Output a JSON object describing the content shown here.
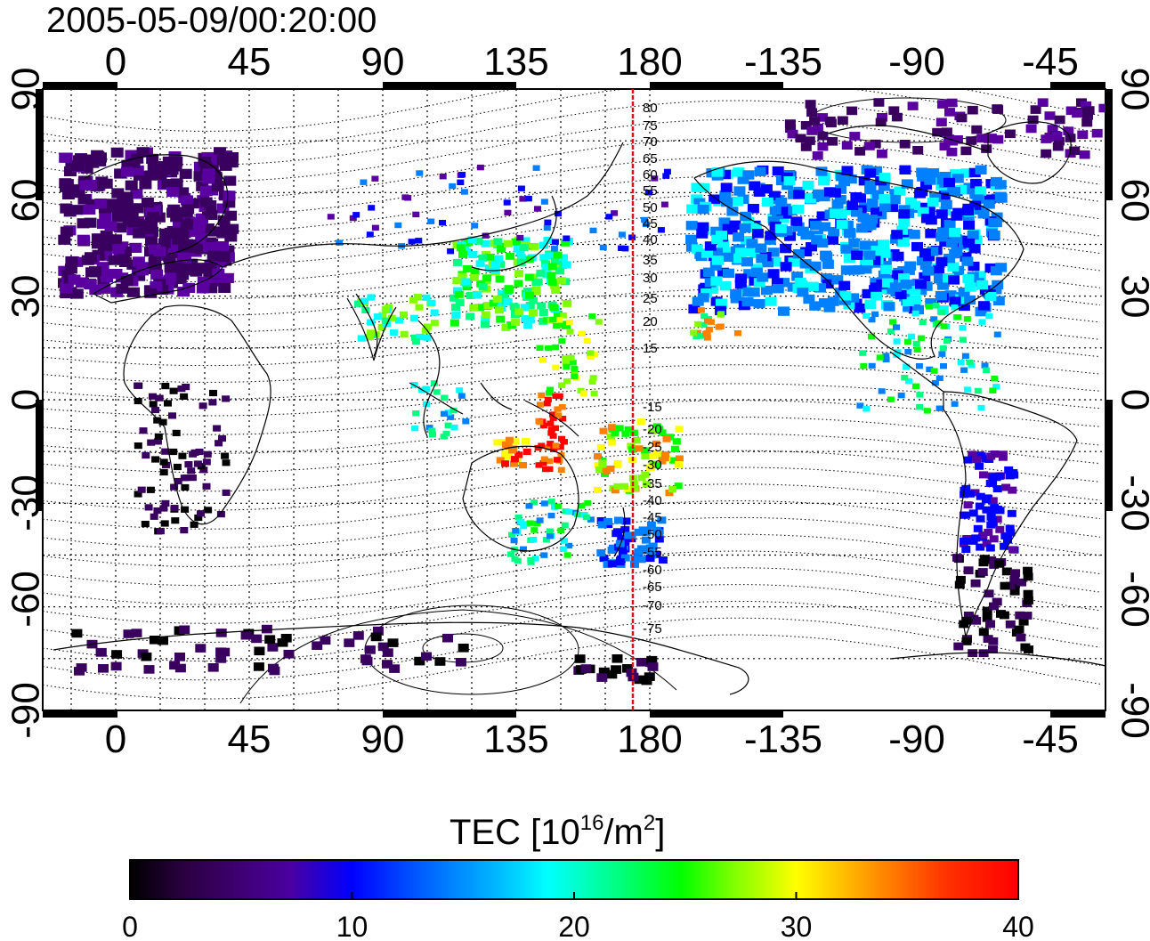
{
  "title": "2005-05-09/00:20:00",
  "axes": {
    "top_ticks": [
      "0",
      "45",
      "90",
      "135",
      "180",
      "-135",
      "-90",
      "-45"
    ],
    "bottom_ticks": [
      "0",
      "45",
      "90",
      "135",
      "180",
      "-135",
      "-90",
      "-45"
    ],
    "left_ticks": [
      "90",
      "60",
      "30",
      "0",
      "-30",
      "-60",
      "-90"
    ],
    "right_ticks": [
      "90",
      "60",
      "30",
      "0",
      "-30",
      "-60",
      "-90"
    ]
  },
  "meridian_labels": [
    "80",
    "75",
    "70",
    "65",
    "60",
    "55",
    "50",
    "45",
    "40",
    "35",
    "30",
    "25",
    "20",
    "15",
    "-15",
    "-20",
    "-25",
    "-30",
    "-35",
    "-40",
    "-45",
    "-50",
    "-55",
    "-60",
    "-65",
    "-70",
    "-75"
  ],
  "colorbar": {
    "label_main": "TEC  [10",
    "label_sup1": "16",
    "label_mid": "/m",
    "label_sup2": "2",
    "label_end": "]",
    "ticks": [
      "0",
      "10",
      "20",
      "30",
      "40"
    ],
    "min": 0,
    "max": 40
  },
  "colors": {
    "colormap": [
      "#000000",
      "#3a0060",
      "#5a00a0",
      "#0000ff",
      "#0080ff",
      "#00ffff",
      "#00ff80",
      "#00ff00",
      "#80ff00",
      "#ffff00",
      "#ff8000",
      "#ff0000"
    ],
    "meridian_line": "#ff0000"
  }
}
